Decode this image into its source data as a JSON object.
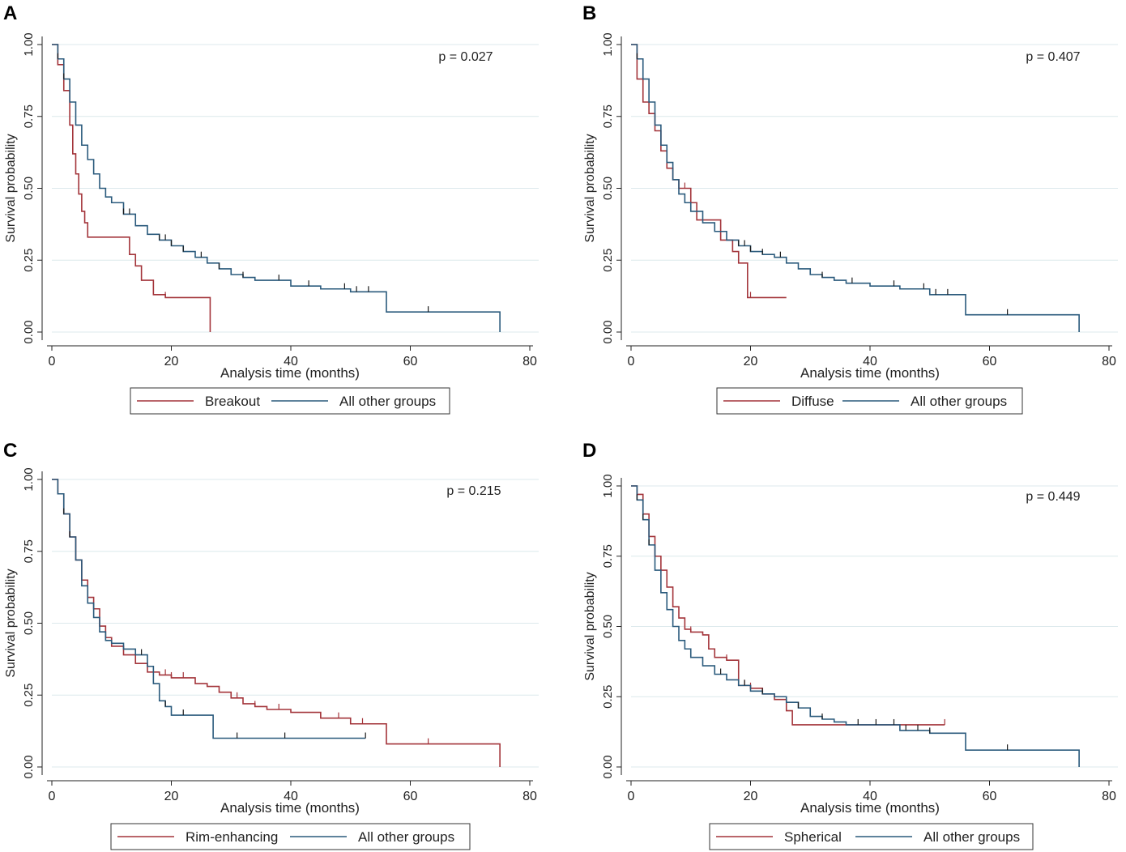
{
  "figure": {
    "colors": {
      "series1": "#a3343a",
      "series2": "#2a5a7c",
      "grid": "#dce9ec",
      "axis": "#222222"
    }
  },
  "chart_data": [
    {
      "panel": "A",
      "type": "line",
      "title": "",
      "xlabel": "Analysis time (months)",
      "ylabel": "Survival probability",
      "xlim": [
        0,
        80
      ],
      "ylim": [
        0,
        1
      ],
      "xticks": [
        "0",
        "20",
        "40",
        "60",
        "80"
      ],
      "yticks": [
        "0.00",
        "0.25",
        "0.50",
        "0.75",
        "1.00"
      ],
      "grid": true,
      "annotation": "p = 0.027",
      "legend_position": "bottom",
      "series": [
        {
          "name": "Breakout",
          "x": [
            0,
            1,
            2,
            3,
            3.5,
            4,
            4.5,
            5,
            5.5,
            6,
            7,
            8,
            10,
            13,
            14,
            15,
            17,
            19,
            26.5
          ],
          "y": [
            1,
            0.93,
            0.84,
            0.72,
            0.62,
            0.55,
            0.48,
            0.42,
            0.38,
            0.33,
            0.33,
            0.33,
            0.33,
            0.27,
            0.23,
            0.18,
            0.13,
            0.12,
            0.12
          ],
          "censor_x": [
            1,
            2,
            19
          ],
          "end_drop": true
        },
        {
          "name": "All other groups",
          "x": [
            0,
            1,
            2,
            3,
            4,
            5,
            6,
            7,
            8,
            9,
            10,
            12,
            14,
            16,
            18,
            20,
            22,
            24,
            26,
            28,
            30,
            32,
            34,
            36,
            40,
            45,
            50,
            56,
            75
          ],
          "y": [
            1,
            0.95,
            0.88,
            0.8,
            0.72,
            0.65,
            0.6,
            0.55,
            0.5,
            0.47,
            0.45,
            0.41,
            0.37,
            0.34,
            0.32,
            0.3,
            0.28,
            0.26,
            0.24,
            0.22,
            0.2,
            0.19,
            0.18,
            0.18,
            0.16,
            0.15,
            0.14,
            0.07,
            0.07
          ],
          "censor_x": [
            1,
            2,
            12,
            13,
            18,
            19,
            20,
            22,
            25,
            28,
            32,
            38,
            43,
            49,
            51,
            53,
            63
          ],
          "end_drop": true
        }
      ],
      "legend_labels": [
        "Breakout",
        "All other groups"
      ]
    },
    {
      "panel": "B",
      "type": "line",
      "title": "",
      "xlabel": "Analysis time (months)",
      "ylabel": "Survival probability",
      "xlim": [
        0,
        80
      ],
      "ylim": [
        0,
        1
      ],
      "xticks": [
        "0",
        "20",
        "40",
        "60",
        "80"
      ],
      "yticks": [
        "0.00",
        "0.25",
        "0.50",
        "0.75",
        "1.00"
      ],
      "grid": true,
      "annotation": "p = 0.407",
      "legend_position": "bottom",
      "series": [
        {
          "name": "Diffuse",
          "x": [
            0,
            1,
            2,
            3,
            4,
            5,
            6,
            7,
            8,
            9,
            10,
            11,
            12,
            14,
            15,
            17,
            18,
            19,
            19.5,
            20,
            26
          ],
          "y": [
            1,
            0.88,
            0.8,
            0.76,
            0.7,
            0.63,
            0.57,
            0.53,
            0.5,
            0.5,
            0.45,
            0.39,
            0.39,
            0.39,
            0.32,
            0.28,
            0.24,
            0.24,
            0.12,
            0.12,
            0.12
          ],
          "censor_x": [
            9,
            15,
            20
          ],
          "end_drop": false
        },
        {
          "name": "All other groups",
          "x": [
            0,
            1,
            2,
            3,
            4,
            5,
            6,
            7,
            8,
            9,
            10,
            12,
            14,
            16,
            18,
            20,
            22,
            24,
            26,
            28,
            30,
            32,
            34,
            36,
            40,
            45,
            50,
            56,
            75
          ],
          "y": [
            1,
            0.95,
            0.88,
            0.8,
            0.72,
            0.65,
            0.59,
            0.53,
            0.48,
            0.45,
            0.42,
            0.38,
            0.35,
            0.32,
            0.3,
            0.28,
            0.27,
            0.26,
            0.24,
            0.22,
            0.2,
            0.19,
            0.18,
            0.17,
            0.16,
            0.15,
            0.13,
            0.06,
            0.06
          ],
          "censor_x": [
            1,
            18,
            19,
            20,
            22,
            25,
            32,
            37,
            44,
            49,
            51,
            53,
            63
          ],
          "end_drop": true
        }
      ],
      "legend_labels": [
        "Diffuse",
        "All other groups"
      ]
    },
    {
      "panel": "C",
      "type": "line",
      "title": "",
      "xlabel": "Analysis time (months)",
      "ylabel": "Survival probability",
      "xlim": [
        0,
        80
      ],
      "ylim": [
        0,
        1
      ],
      "xticks": [
        "0",
        "20",
        "40",
        "60",
        "80"
      ],
      "yticks": [
        "0.00",
        "0.25",
        "0.50",
        "0.75",
        "1.00"
      ],
      "grid": true,
      "annotation": "p = 0.215",
      "legend_position": "bottom",
      "series": [
        {
          "name": "Rim-enhancing",
          "x": [
            0,
            1,
            2,
            3,
            4,
            5,
            6,
            7,
            8,
            9,
            10,
            12,
            14,
            16,
            18,
            20,
            22,
            24,
            26,
            28,
            30,
            32,
            34,
            36,
            40,
            45,
            50,
            56,
            75
          ],
          "y": [
            1,
            0.95,
            0.88,
            0.8,
            0.72,
            0.65,
            0.59,
            0.55,
            0.49,
            0.45,
            0.42,
            0.39,
            0.36,
            0.33,
            0.32,
            0.31,
            0.31,
            0.29,
            0.28,
            0.26,
            0.24,
            0.22,
            0.21,
            0.2,
            0.19,
            0.17,
            0.15,
            0.08,
            0.08
          ],
          "censor_x": [
            19,
            20,
            22,
            31,
            34,
            38,
            45,
            48,
            50,
            52,
            63
          ],
          "end_drop": true
        },
        {
          "name": "All other groups",
          "x": [
            0,
            1,
            2,
            3,
            4,
            5,
            6,
            7,
            8,
            9,
            10,
            12,
            14,
            16,
            17,
            18,
            19,
            20,
            22,
            24,
            26,
            27,
            30,
            40,
            52.5
          ],
          "y": [
            1,
            0.95,
            0.88,
            0.8,
            0.72,
            0.63,
            0.57,
            0.52,
            0.47,
            0.44,
            0.43,
            0.41,
            0.39,
            0.35,
            0.29,
            0.23,
            0.21,
            0.18,
            0.18,
            0.18,
            0.18,
            0.1,
            0.1,
            0.1,
            0.1
          ],
          "censor_x": [
            2,
            3,
            15,
            19,
            22,
            31,
            39,
            52.5
          ],
          "end_drop": false
        }
      ],
      "legend_labels": [
        "Rim-enhancing",
        "All other groups"
      ]
    },
    {
      "panel": "D",
      "type": "line",
      "title": "",
      "xlabel": "Analysis time (months)",
      "ylabel": "Survival probability",
      "xlim": [
        0,
        80
      ],
      "ylim": [
        0,
        1
      ],
      "xticks": [
        "0",
        "20",
        "40",
        "60",
        "80"
      ],
      "yticks": [
        "0.00",
        "0.25",
        "0.50",
        "0.75",
        "1.00"
      ],
      "grid": true,
      "annotation": "p = 0.449",
      "legend_position": "bottom",
      "series": [
        {
          "name": "Spherical",
          "x": [
            0,
            1,
            2,
            3,
            4,
            5,
            6,
            7,
            8,
            9,
            10,
            12,
            13,
            14,
            16,
            18,
            20,
            22,
            24,
            26,
            27,
            30,
            40,
            52.5
          ],
          "y": [
            1,
            0.97,
            0.9,
            0.82,
            0.75,
            0.7,
            0.64,
            0.57,
            0.53,
            0.49,
            0.48,
            0.47,
            0.42,
            0.39,
            0.38,
            0.29,
            0.28,
            0.26,
            0.24,
            0.2,
            0.15,
            0.15,
            0.15,
            0.15
          ],
          "censor_x": [
            10,
            16,
            18,
            19,
            20,
            22,
            52.5
          ],
          "end_drop": false
        },
        {
          "name": "All other groups",
          "x": [
            0,
            1,
            2,
            3,
            4,
            5,
            6,
            7,
            8,
            9,
            10,
            12,
            14,
            16,
            18,
            20,
            22,
            24,
            26,
            28,
            30,
            32,
            34,
            36,
            40,
            45,
            50,
            56,
            75
          ],
          "y": [
            1,
            0.95,
            0.88,
            0.79,
            0.7,
            0.62,
            0.56,
            0.5,
            0.45,
            0.42,
            0.39,
            0.36,
            0.33,
            0.31,
            0.29,
            0.27,
            0.26,
            0.25,
            0.23,
            0.21,
            0.18,
            0.17,
            0.16,
            0.15,
            0.15,
            0.13,
            0.12,
            0.06,
            0.06
          ],
          "censor_x": [
            1,
            2,
            3,
            15,
            19,
            22,
            28,
            32,
            38,
            41,
            44,
            46,
            48,
            50,
            63
          ],
          "end_drop": true
        }
      ],
      "legend_labels": [
        "Spherical",
        "All other groups"
      ]
    }
  ]
}
